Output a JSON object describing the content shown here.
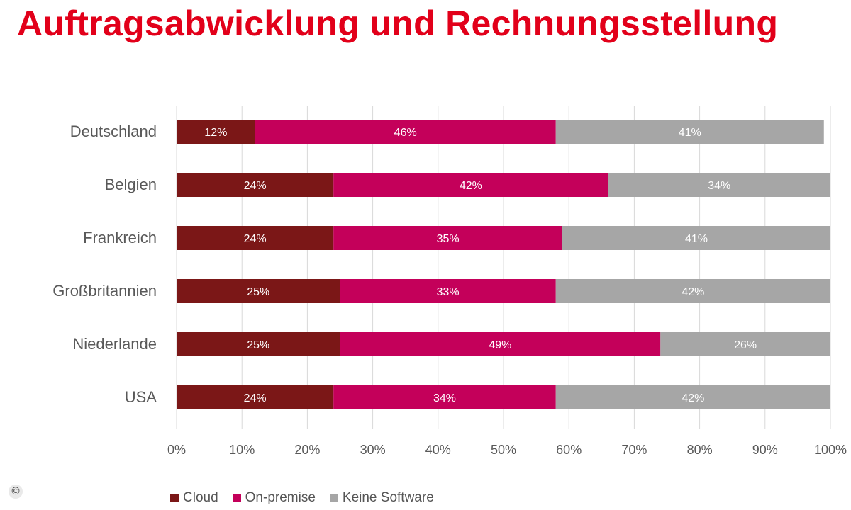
{
  "title": "Auftragsabwicklung und Rechnungsstellung",
  "copyright_symbol": "©",
  "chart_data": {
    "type": "bar",
    "orientation": "horizontal",
    "stacked": true,
    "title": "Auftragsabwicklung und Rechnungsstellung",
    "xlim": [
      0,
      100
    ],
    "x_ticks": [
      "0%",
      "10%",
      "20%",
      "30%",
      "40%",
      "50%",
      "60%",
      "70%",
      "80%",
      "90%",
      "100%"
    ],
    "grid": true,
    "legend_position": "bottom",
    "categories": [
      "Deutschland",
      "Belgien",
      "Frankreich",
      "Großbritannien",
      "Niederlande",
      "USA"
    ],
    "series": [
      {
        "name": "Cloud",
        "color": "#7b1717",
        "values": [
          12,
          24,
          24,
          25,
          25,
          24
        ],
        "labels": [
          "12%",
          "24%",
          "24%",
          "25%",
          "25%",
          "24%"
        ]
      },
      {
        "name": "On-premise",
        "color": "#c4005a",
        "values": [
          46,
          42,
          35,
          33,
          49,
          34
        ],
        "labels": [
          "46%",
          "42%",
          "35%",
          "33%",
          "49%",
          "34%"
        ]
      },
      {
        "name": "Keine Software",
        "color": "#a6a6a6",
        "values": [
          41,
          34,
          41,
          42,
          26,
          42
        ],
        "labels": [
          "41%",
          "34%",
          "41%",
          "42%",
          "26%",
          "42%"
        ]
      }
    ]
  }
}
